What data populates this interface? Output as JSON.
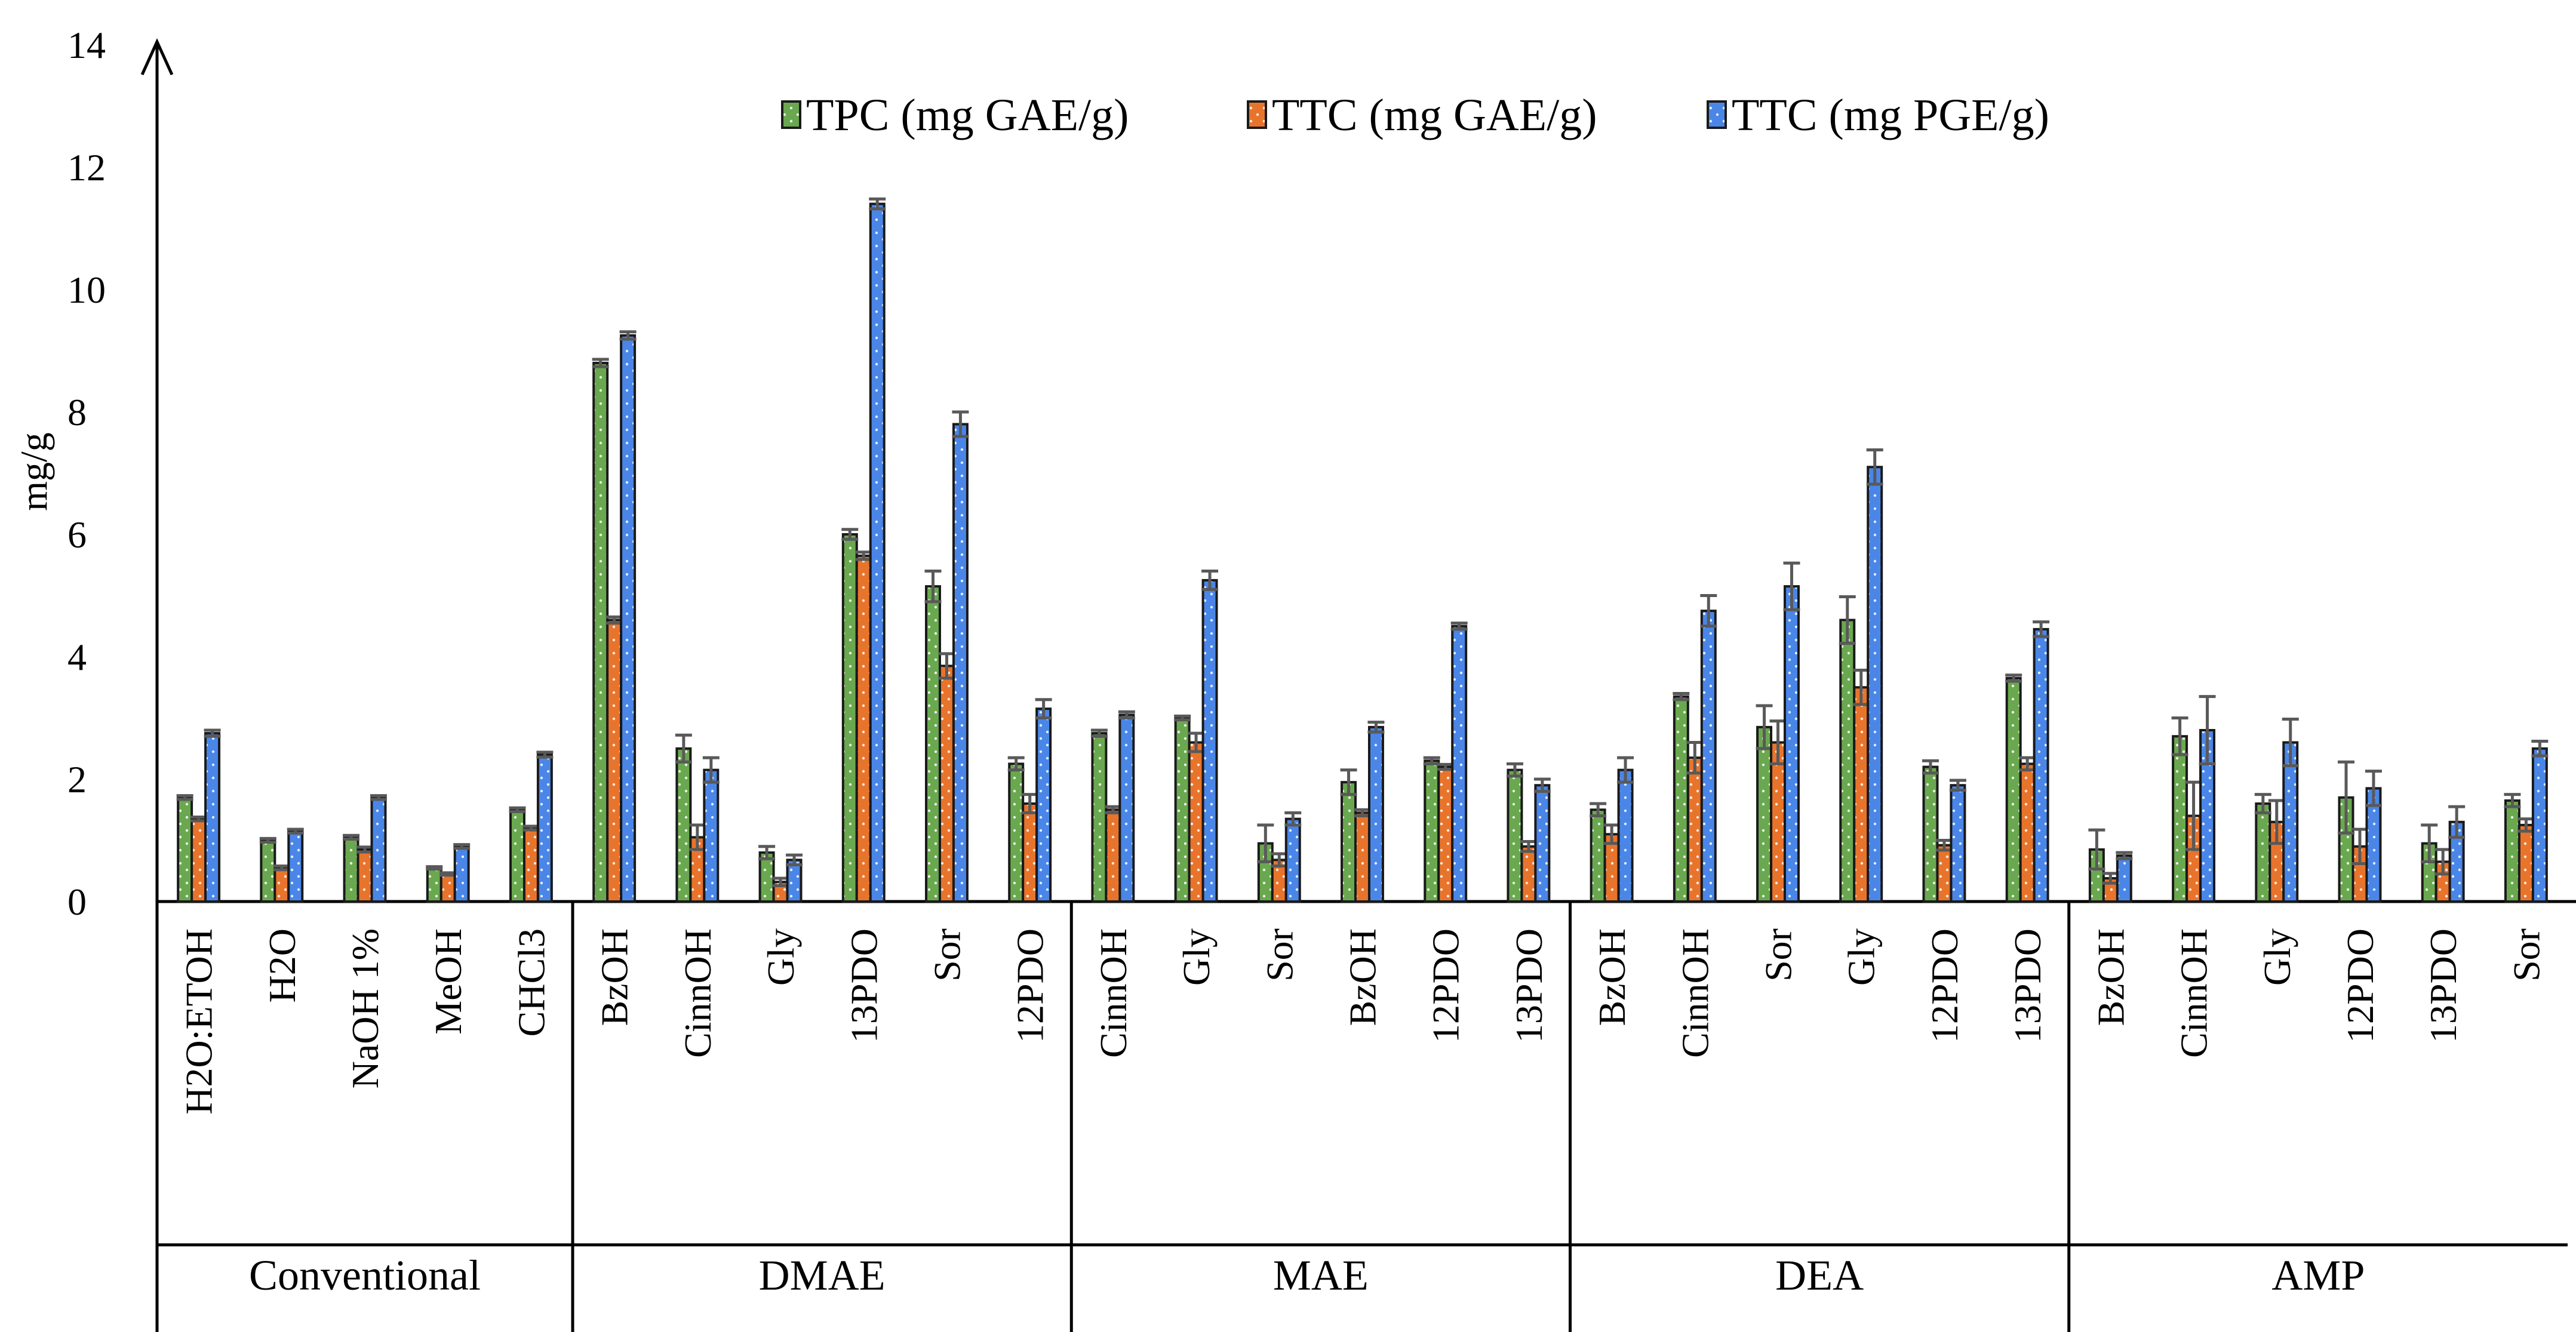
{
  "chart_data": {
    "type": "bar",
    "title": "",
    "xlabel": "",
    "ylabel": "mg/g",
    "ylim": [
      0,
      14
    ],
    "yticks": [
      "0",
      "2",
      "4",
      "6",
      "8",
      "10",
      "12",
      "14"
    ],
    "grid": false,
    "legend_position": "top-center",
    "series": [
      {
        "name": "TPC (mg GAE/g)",
        "color": "#6aa84f",
        "pattern": "dotted"
      },
      {
        "name": "TTC (mg GAE/g)",
        "color": "#e8742c",
        "pattern": "dotted"
      },
      {
        "name": "TTC (mg PGE/g)",
        "color": "#4a86e8",
        "pattern": "dotted"
      }
    ],
    "groups": [
      {
        "name": "Conventional",
        "categories": [
          {
            "label": "H2O:ETOH",
            "values": [
              1.7,
              1.35,
              2.75
            ],
            "errors": [
              0.03,
              0.03,
              0.05
            ]
          },
          {
            "label": "H2O",
            "values": [
              1.0,
              0.55,
              1.15
            ],
            "errors": [
              0.03,
              0.03,
              0.03
            ]
          },
          {
            "label": "NaOH 1%",
            "values": [
              1.05,
              0.85,
              1.7
            ],
            "errors": [
              0.03,
              0.04,
              0.03
            ]
          },
          {
            "label": "MeOH",
            "values": [
              0.55,
              0.45,
              0.9
            ],
            "errors": [
              0.02,
              0.02,
              0.03
            ]
          },
          {
            "label": "CHCl3",
            "values": [
              1.5,
              1.2,
              2.4
            ],
            "errors": [
              0.03,
              0.03,
              0.04
            ]
          }
        ]
      },
      {
        "name": "DMAE",
        "categories": [
          {
            "label": "BzOH",
            "values": [
              8.8,
              4.6,
              9.25
            ],
            "errors": [
              0.06,
              0.05,
              0.06
            ]
          },
          {
            "label": "CinnOH",
            "values": [
              2.5,
              1.05,
              2.15
            ],
            "errors": [
              0.22,
              0.2,
              0.2
            ]
          },
          {
            "label": "Gly",
            "values": [
              0.8,
              0.32,
              0.68
            ],
            "errors": [
              0.1,
              0.06,
              0.08
            ]
          },
          {
            "label": "13PDO",
            "values": [
              6.0,
              5.65,
              11.4
            ],
            "errors": [
              0.08,
              0.06,
              0.08
            ]
          },
          {
            "label": "Sor",
            "values": [
              5.15,
              3.85,
              7.8
            ],
            "errors": [
              0.25,
              0.2,
              0.2
            ]
          },
          {
            "label": "12PDO",
            "values": [
              2.25,
              1.6,
              3.15
            ],
            "errors": [
              0.1,
              0.15,
              0.15
            ]
          }
        ]
      },
      {
        "name": "MAE",
        "categories": [
          {
            "label": "CinnOH",
            "values": [
              2.75,
              1.5,
              3.05
            ],
            "errors": [
              0.05,
              0.05,
              0.05
            ]
          },
          {
            "label": "Gly",
            "values": [
              3.0,
              2.6,
              5.25
            ],
            "errors": [
              0.03,
              0.15,
              0.15
            ]
          },
          {
            "label": "Sor",
            "values": [
              0.95,
              0.68,
              1.35
            ],
            "errors": [
              0.3,
              0.1,
              0.1
            ]
          },
          {
            "label": "BzOH",
            "values": [
              1.95,
              1.45,
              2.85
            ],
            "errors": [
              0.2,
              0.05,
              0.08
            ]
          },
          {
            "label": "12PDO",
            "values": [
              2.3,
              2.2,
              4.5
            ],
            "errors": [
              0.05,
              0.04,
              0.05
            ]
          },
          {
            "label": "13PDO",
            "values": [
              2.15,
              0.9,
              1.9
            ],
            "errors": [
              0.1,
              0.08,
              0.1
            ]
          }
        ]
      },
      {
        "name": "DEA",
        "categories": [
          {
            "label": "BzOH",
            "values": [
              1.5,
              1.1,
              2.15
            ],
            "errors": [
              0.1,
              0.15,
              0.2
            ]
          },
          {
            "label": "CinnOH",
            "values": [
              3.35,
              2.35,
              4.75
            ],
            "errors": [
              0.05,
              0.25,
              0.25
            ]
          },
          {
            "label": "Sor",
            "values": [
              2.85,
              2.6,
              5.15
            ],
            "errors": [
              0.35,
              0.35,
              0.38
            ]
          },
          {
            "label": "Gly",
            "values": [
              4.6,
              3.5,
              7.1
            ],
            "errors": [
              0.38,
              0.28,
              0.28
            ]
          },
          {
            "label": "12PDO",
            "values": [
              2.2,
              0.92,
              1.9
            ],
            "errors": [
              0.1,
              0.08,
              0.08
            ]
          },
          {
            "label": "13PDO",
            "values": [
              3.65,
              2.25,
              4.45
            ],
            "errors": [
              0.05,
              0.1,
              0.12
            ]
          }
        ]
      },
      {
        "name": "AMP",
        "categories": [
          {
            "label": "BzOH",
            "values": [
              0.85,
              0.38,
              0.75
            ],
            "errors": [
              0.32,
              0.08,
              0.05
            ]
          },
          {
            "label": "CinnOH",
            "values": [
              2.7,
              1.4,
              2.8
            ],
            "errors": [
              0.3,
              0.55,
              0.55
            ]
          },
          {
            "label": "Gly",
            "values": [
              1.6,
              1.3,
              2.6
            ],
            "errors": [
              0.15,
              0.35,
              0.38
            ]
          },
          {
            "label": "12PDO",
            "values": [
              1.7,
              0.9,
              1.85
            ],
            "errors": [
              0.58,
              0.28,
              0.28
            ]
          },
          {
            "label": "13PDO",
            "values": [
              0.95,
              0.65,
              1.3
            ],
            "errors": [
              0.3,
              0.2,
              0.25
            ]
          },
          {
            "label": "Sor",
            "values": [
              1.65,
              1.25,
              2.5
            ],
            "errors": [
              0.1,
              0.1,
              0.12
            ]
          }
        ]
      }
    ]
  }
}
